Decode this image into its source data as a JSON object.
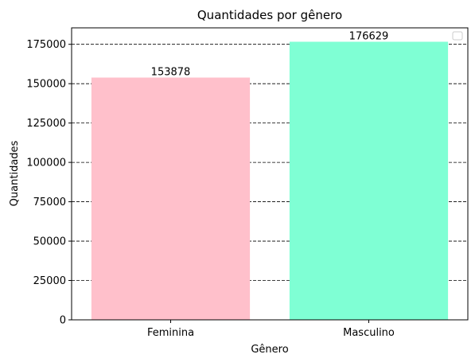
{
  "chart_data": {
    "type": "bar",
    "title": "Quantidades por gênero",
    "xlabel": "Gênero",
    "ylabel": "Quantidades",
    "categories": [
      "Feminina",
      "Masculino"
    ],
    "values": [
      153878,
      176629
    ],
    "data_labels": [
      "153878",
      "176629"
    ],
    "bar_colors": [
      "#ffc0cb",
      "#7fffd4"
    ],
    "ylim": [
      0,
      185460
    ],
    "yticks": [
      0,
      25000,
      50000,
      75000,
      100000,
      125000,
      150000,
      175000
    ],
    "ytick_labels": [
      "0",
      "25000",
      "50000",
      "75000",
      "100000",
      "125000",
      "150000",
      "175000"
    ],
    "grid": "horizontal dashed",
    "legend": "top-right (empty)"
  }
}
